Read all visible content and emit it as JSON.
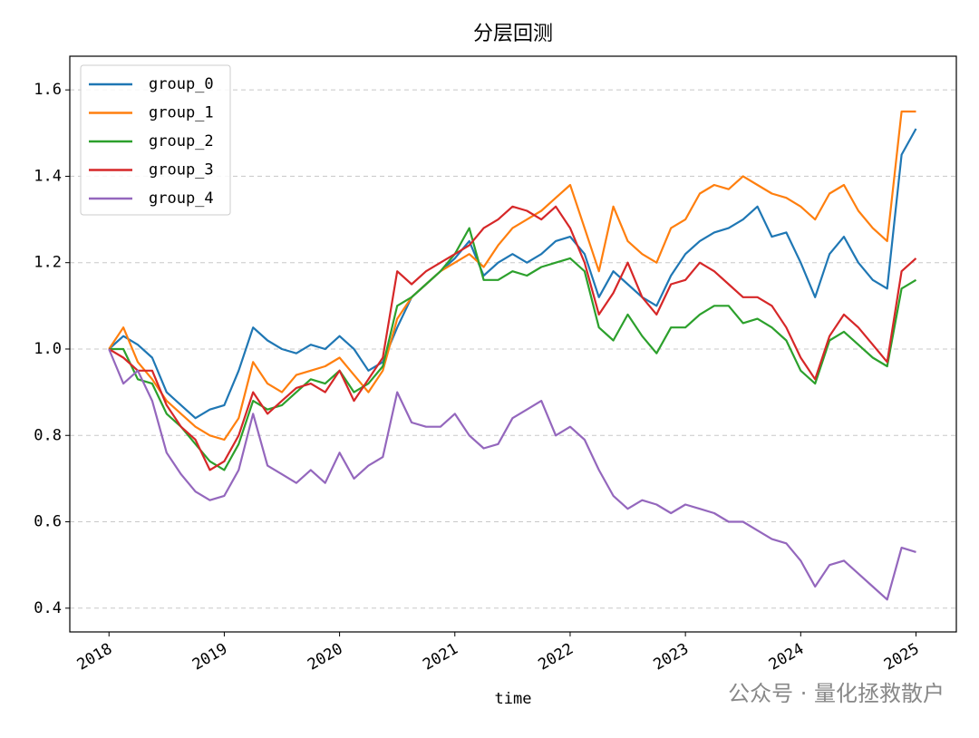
{
  "chart_data": {
    "type": "line",
    "title": "分层回测",
    "xlabel": "time",
    "watermark": "公众号 · 量化拯救散户",
    "x": [
      2018,
      2018.125,
      2018.25,
      2018.375,
      2018.5,
      2018.625,
      2018.75,
      2018.875,
      2019,
      2019.125,
      2019.25,
      2019.375,
      2019.5,
      2019.625,
      2019.75,
      2019.875,
      2020,
      2020.125,
      2020.25,
      2020.375,
      2020.5,
      2020.625,
      2020.75,
      2020.875,
      2021,
      2021.125,
      2021.25,
      2021.375,
      2021.5,
      2021.625,
      2021.75,
      2021.875,
      2022,
      2022.125,
      2022.25,
      2022.375,
      2022.5,
      2022.625,
      2022.75,
      2022.875,
      2023,
      2023.125,
      2023.25,
      2023.375,
      2023.5,
      2023.625,
      2023.75,
      2023.875,
      2024,
      2024.125,
      2024.25,
      2024.375,
      2024.5,
      2024.625,
      2024.75,
      2024.875,
      2025
    ],
    "series": [
      {
        "name": "group_0",
        "color": "#1f77b4",
        "values": [
          1.0,
          1.03,
          1.01,
          0.98,
          0.9,
          0.87,
          0.84,
          0.86,
          0.87,
          0.95,
          1.05,
          1.02,
          1.0,
          0.99,
          1.01,
          1.0,
          1.03,
          1.0,
          0.95,
          0.97,
          1.05,
          1.12,
          1.15,
          1.18,
          1.21,
          1.25,
          1.17,
          1.2,
          1.22,
          1.2,
          1.22,
          1.25,
          1.26,
          1.22,
          1.12,
          1.18,
          1.15,
          1.12,
          1.1,
          1.17,
          1.22,
          1.25,
          1.27,
          1.28,
          1.3,
          1.33,
          1.26,
          1.27,
          1.2,
          1.12,
          1.22,
          1.26,
          1.2,
          1.16,
          1.14,
          1.45,
          1.51
        ]
      },
      {
        "name": "group_1",
        "color": "#ff7f0e",
        "values": [
          1.0,
          1.05,
          0.97,
          0.93,
          0.88,
          0.85,
          0.82,
          0.8,
          0.79,
          0.84,
          0.97,
          0.92,
          0.9,
          0.94,
          0.95,
          0.96,
          0.98,
          0.94,
          0.9,
          0.95,
          1.07,
          1.12,
          1.15,
          1.18,
          1.2,
          1.22,
          1.19,
          1.24,
          1.28,
          1.3,
          1.32,
          1.35,
          1.38,
          1.28,
          1.18,
          1.33,
          1.25,
          1.22,
          1.2,
          1.28,
          1.3,
          1.36,
          1.38,
          1.37,
          1.4,
          1.38,
          1.36,
          1.35,
          1.33,
          1.3,
          1.36,
          1.38,
          1.32,
          1.28,
          1.25,
          1.55,
          1.55
        ]
      },
      {
        "name": "group_2",
        "color": "#2ca02c",
        "values": [
          1.0,
          1.0,
          0.93,
          0.92,
          0.85,
          0.82,
          0.78,
          0.74,
          0.72,
          0.78,
          0.88,
          0.86,
          0.87,
          0.9,
          0.93,
          0.92,
          0.95,
          0.9,
          0.92,
          0.96,
          1.1,
          1.12,
          1.15,
          1.18,
          1.22,
          1.28,
          1.16,
          1.16,
          1.18,
          1.17,
          1.19,
          1.2,
          1.21,
          1.18,
          1.05,
          1.02,
          1.08,
          1.03,
          0.99,
          1.05,
          1.05,
          1.08,
          1.1,
          1.1,
          1.06,
          1.07,
          1.05,
          1.02,
          0.95,
          0.92,
          1.02,
          1.04,
          1.01,
          0.98,
          0.96,
          1.14,
          1.16
        ]
      },
      {
        "name": "group_3",
        "color": "#d62728",
        "values": [
          1.0,
          0.98,
          0.95,
          0.95,
          0.87,
          0.82,
          0.79,
          0.72,
          0.74,
          0.8,
          0.9,
          0.85,
          0.88,
          0.91,
          0.92,
          0.9,
          0.95,
          0.88,
          0.93,
          0.98,
          1.18,
          1.15,
          1.18,
          1.2,
          1.22,
          1.24,
          1.28,
          1.3,
          1.33,
          1.32,
          1.3,
          1.33,
          1.28,
          1.2,
          1.08,
          1.13,
          1.2,
          1.12,
          1.08,
          1.15,
          1.16,
          1.2,
          1.18,
          1.15,
          1.12,
          1.12,
          1.1,
          1.05,
          0.98,
          0.93,
          1.03,
          1.08,
          1.05,
          1.01,
          0.97,
          1.18,
          1.21
        ]
      },
      {
        "name": "group_4",
        "color": "#9467bd",
        "values": [
          1.0,
          0.92,
          0.95,
          0.88,
          0.76,
          0.71,
          0.67,
          0.65,
          0.66,
          0.72,
          0.85,
          0.73,
          0.71,
          0.69,
          0.72,
          0.69,
          0.76,
          0.7,
          0.73,
          0.75,
          0.9,
          0.83,
          0.82,
          0.82,
          0.85,
          0.8,
          0.77,
          0.78,
          0.84,
          0.86,
          0.88,
          0.8,
          0.82,
          0.79,
          0.72,
          0.66,
          0.63,
          0.65,
          0.64,
          0.62,
          0.64,
          0.63,
          0.62,
          0.6,
          0.6,
          0.58,
          0.56,
          0.55,
          0.51,
          0.45,
          0.5,
          0.51,
          0.48,
          0.45,
          0.42,
          0.54,
          0.53
        ]
      }
    ],
    "xlim": [
      2017.66,
      2025.35
    ],
    "xticks": [
      2018,
      2019,
      2020,
      2021,
      2022,
      2023,
      2024,
      2025
    ],
    "ylim": [
      0.345,
      1.678
    ],
    "yticks": [
      0.4,
      0.6,
      0.8,
      {
        "value": 1,
        "label": "1.0"
      },
      1.2,
      1.4,
      1.6
    ],
    "grid": true,
    "legend": "upper-left"
  }
}
